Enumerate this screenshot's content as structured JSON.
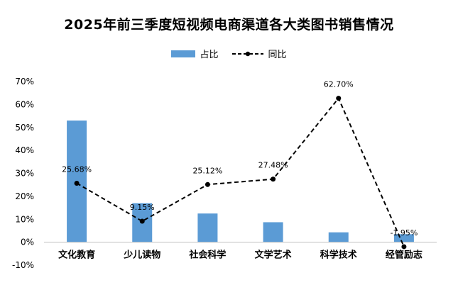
{
  "chart_data": {
    "type": "bar",
    "title": "2025年前三季度短视频电商渠道各大类图书销售情况",
    "categories": [
      "文化教育",
      "少儿读物",
      "社会科学",
      "文学艺术",
      "科学技术",
      "经管励志"
    ],
    "series": [
      {
        "name": "占比",
        "type": "bar",
        "color": "#5b9bd5",
        "values": [
          53.0,
          17.0,
          12.5,
          8.7,
          4.3,
          3.5
        ]
      },
      {
        "name": "同比",
        "type": "line",
        "color": "#000000",
        "style": "dashed",
        "marker": "circle",
        "values": [
          25.68,
          9.15,
          25.12,
          27.48,
          62.7,
          -1.95
        ],
        "labels": [
          "25.68%",
          "9.15%",
          "25.12%",
          "27.48%",
          "62.70%",
          "-1.95%"
        ]
      }
    ],
    "ylim": [
      -10,
      70
    ],
    "yticks": [
      -10,
      0,
      10,
      20,
      30,
      40,
      50,
      60,
      70
    ],
    "ytick_labels": [
      "-10%",
      "0%",
      "10%",
      "20%",
      "30%",
      "40%",
      "50%",
      "60%",
      "70%"
    ],
    "legend_position": "top-center",
    "grid": false
  }
}
